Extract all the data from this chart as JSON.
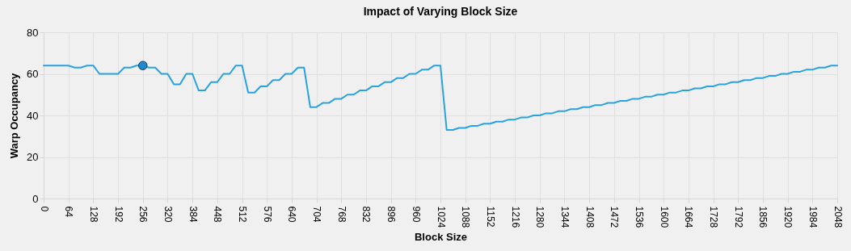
{
  "chart_data": {
    "type": "line",
    "title": "Impact of Varying Block Size",
    "xlabel": "Block Size",
    "ylabel": "Warp Occupancy",
    "xlim": [
      0,
      2048
    ],
    "xticks": [
      0,
      64,
      128,
      192,
      256,
      320,
      384,
      448,
      512,
      576,
      640,
      704,
      768,
      832,
      896,
      960,
      1024,
      1088,
      1152,
      1216,
      1280,
      1344,
      1408,
      1472,
      1536,
      1600,
      1664,
      1728,
      1792,
      1856,
      1920,
      1984,
      2048
    ],
    "ylim": [
      0,
      80
    ],
    "yticks": [
      0,
      20,
      40,
      60,
      80
    ],
    "grid": true,
    "series": [
      {
        "type": "line",
        "color": "#29a3e0",
        "marker": "none",
        "x": [
          0,
          16,
          32,
          48,
          64,
          80,
          96,
          112,
          128,
          144,
          160,
          176,
          192,
          208,
          224,
          240,
          256,
          272,
          288,
          304,
          320,
          336,
          352,
          368,
          384,
          400,
          416,
          432,
          448,
          464,
          480,
          496,
          512,
          528,
          544,
          560,
          576,
          592,
          608,
          624,
          640,
          656,
          672,
          688,
          704,
          720,
          736,
          752,
          768,
          784,
          800,
          816,
          832,
          848,
          864,
          880,
          896,
          912,
          928,
          944,
          960,
          976,
          992,
          1008,
          1024,
          1040,
          1056,
          1072,
          1088,
          1104,
          1120,
          1136,
          1152,
          1168,
          1184,
          1200,
          1216,
          1232,
          1248,
          1264,
          1280,
          1296,
          1312,
          1328,
          1344,
          1360,
          1376,
          1392,
          1408,
          1424,
          1440,
          1456,
          1472,
          1488,
          1504,
          1520,
          1536,
          1552,
          1568,
          1584,
          1600,
          1616,
          1632,
          1648,
          1664,
          1680,
          1696,
          1712,
          1728,
          1744,
          1760,
          1776,
          1792,
          1808,
          1824,
          1840,
          1856,
          1872,
          1888,
          1904,
          1920,
          1936,
          1952,
          1968,
          1984,
          2000,
          2016,
          2032,
          2048
        ],
        "values": [
          64,
          64,
          64,
          64,
          64,
          63,
          63,
          64,
          64,
          60,
          60,
          60,
          60,
          63,
          63,
          64,
          64,
          63,
          63,
          60,
          60,
          55,
          55,
          60,
          60,
          52,
          52,
          56,
          56,
          60,
          60,
          64,
          64,
          51,
          51,
          54,
          54,
          57,
          57,
          60,
          60,
          63,
          63,
          44,
          44,
          46,
          46,
          48,
          48,
          50,
          50,
          52,
          52,
          54,
          54,
          56,
          56,
          58,
          58,
          60,
          60,
          62,
          62,
          64,
          64,
          33,
          33,
          34,
          34,
          35,
          35,
          36,
          36,
          37,
          37,
          38,
          38,
          39,
          39,
          40,
          40,
          41,
          41,
          42,
          42,
          43,
          43,
          44,
          44,
          45,
          45,
          46,
          46,
          47,
          47,
          48,
          48,
          49,
          49,
          50,
          50,
          51,
          51,
          52,
          52,
          53,
          53,
          54,
          54,
          55,
          55,
          56,
          56,
          57,
          57,
          58,
          58,
          59,
          59,
          60,
          60,
          61,
          61,
          62,
          62,
          63,
          63,
          64,
          64
        ]
      },
      {
        "type": "scatter",
        "color": "#1e8ad0",
        "marker": "circle",
        "x": [
          256
        ],
        "values": [
          64
        ]
      }
    ]
  }
}
